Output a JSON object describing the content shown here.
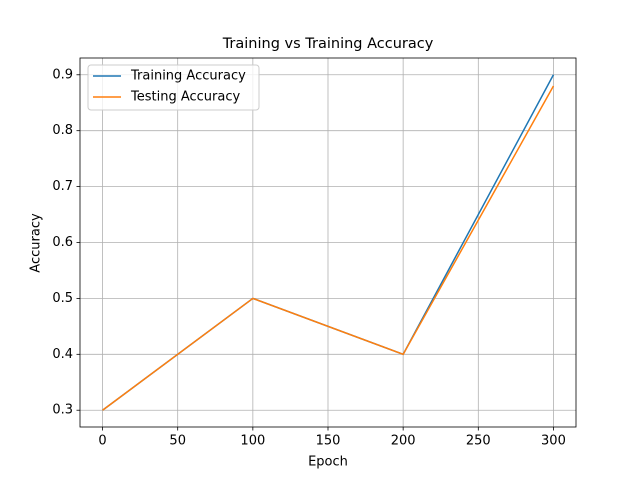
{
  "chart_data": {
    "type": "line",
    "title": "Training vs Training Accuracy",
    "x_label": "Epoch",
    "y_label": "Accuracy",
    "x": [
      0,
      100,
      200,
      300
    ],
    "series": [
      {
        "name": "Training Accuracy",
        "color": "#1f77b4",
        "values": [
          0.3,
          0.5,
          0.4,
          0.9
        ]
      },
      {
        "name": "Testing Accuracy",
        "color": "#ff7f0e",
        "values": [
          0.3,
          0.5,
          0.4,
          0.88
        ]
      }
    ],
    "xlim": [
      -15,
      315
    ],
    "xticks": [
      0,
      50,
      100,
      150,
      200,
      250,
      300
    ],
    "ylim": [
      0.27,
      0.93
    ],
    "yticks": [
      0.3,
      0.4,
      0.5,
      0.6,
      0.7,
      0.8,
      0.9
    ],
    "grid": true,
    "legend": "upper-left"
  }
}
